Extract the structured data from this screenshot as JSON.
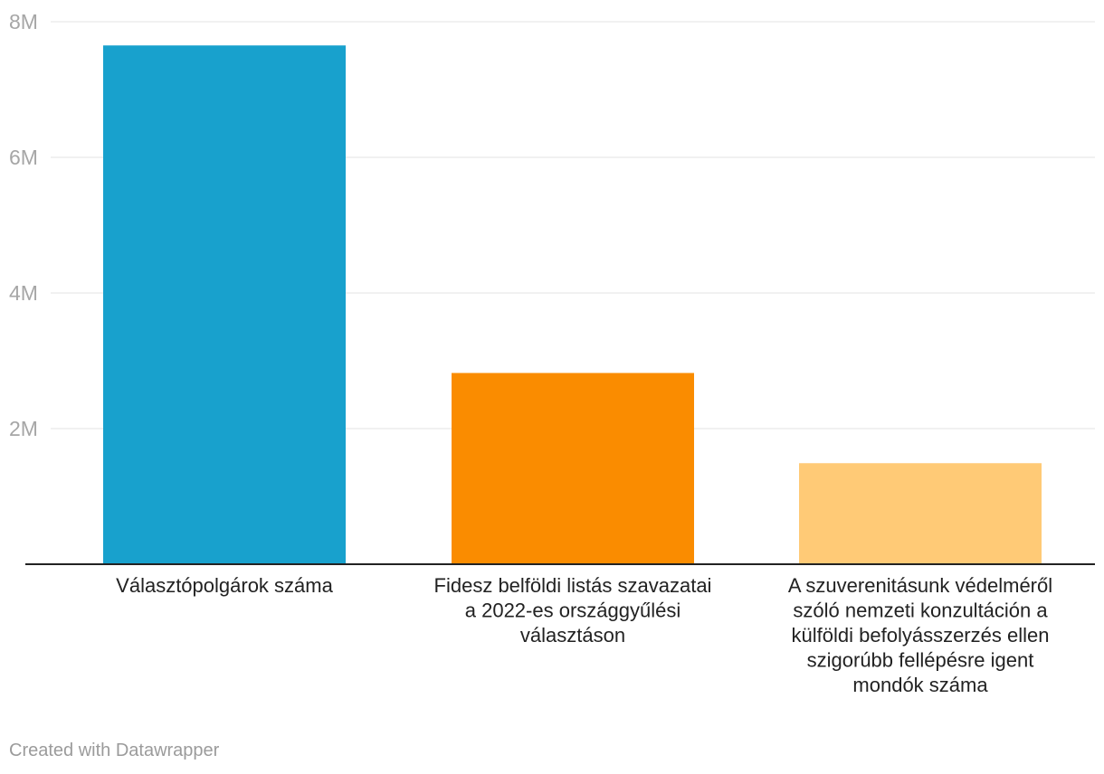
{
  "chart_data": {
    "type": "bar",
    "categories": [
      [
        "Választópolgárok száma"
      ],
      [
        "Fidesz belföldi listás szavazatai",
        "a 2022-es országgyűlési",
        "választáson"
      ],
      [
        "A szuverenitásunk védelméről",
        "szóló nemzeti konzultáción a",
        "külföldi befolyásszerzés ellen",
        "szigorúbb fellépésre igent",
        "mondók száma"
      ]
    ],
    "values": [
      7650000,
      2820000,
      1490000
    ],
    "colors": [
      "#18a1cd",
      "#fa8c00",
      "#ffca76"
    ],
    "ylim": [
      0,
      8000000
    ],
    "yticks": [
      2000000,
      4000000,
      6000000,
      8000000
    ],
    "ytick_labels": [
      "2M",
      "4M",
      "6M",
      "8M"
    ],
    "grid": true,
    "title": "",
    "xlabel": "",
    "ylabel": ""
  },
  "footer": {
    "credit": "Created with Datawrapper"
  }
}
